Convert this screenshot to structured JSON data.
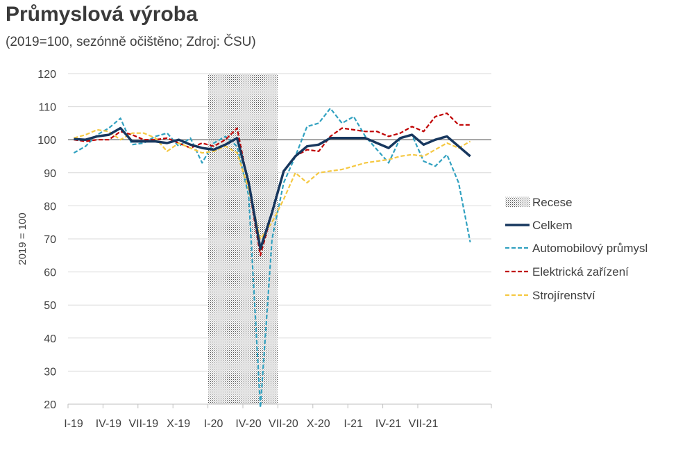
{
  "title": "Průmyslová výroba",
  "subtitle": "(2019=100, sezónně očištěno; Zdroj: ČSU)",
  "chart_data": {
    "type": "line",
    "title": "Průmyslová výroba",
    "subtitle": "(2019=100, sezónně očištěno; Zdroj: ČSU)",
    "xlabel": "",
    "ylabel": "2019 = 100",
    "ylim": [
      20,
      120
    ],
    "yticks": [
      20,
      30,
      40,
      50,
      60,
      70,
      80,
      90,
      100,
      110,
      120
    ],
    "x_tick_labels": [
      "I-19",
      "IV-19",
      "VII-19",
      "X-19",
      "I-20",
      "IV-20",
      "VII-20",
      "X-20",
      "I-21",
      "IV-21",
      "VII-21"
    ],
    "x": [
      "I-19",
      "II-19",
      "III-19",
      "IV-19",
      "V-19",
      "VI-19",
      "VII-19",
      "VIII-19",
      "IX-19",
      "X-19",
      "XI-19",
      "XII-19",
      "I-20",
      "II-20",
      "III-20",
      "IV-20",
      "V-20",
      "VI-20",
      "VII-20",
      "VIII-20",
      "IX-20",
      "X-20",
      "XI-20",
      "XII-20",
      "I-21",
      "II-21",
      "III-21",
      "IV-21",
      "V-21",
      "VI-21",
      "VII-21",
      "VIII-21",
      "IX-21",
      "X-21",
      "XI-21"
    ],
    "reference_line": 100,
    "recession_shading": {
      "label": "Recese",
      "from": "I-20",
      "to": "VI-20"
    },
    "series": [
      {
        "name": "Celkem",
        "color": "#17375e",
        "style": "solid",
        "values": [
          100.2,
          100.0,
          101.0,
          101.5,
          103.5,
          99.5,
          99.5,
          99.5,
          99.0,
          100.0,
          98.5,
          97.5,
          97.0,
          98.5,
          100.5,
          87.0,
          67.0,
          78.0,
          90.5,
          95.0,
          98.0,
          98.5,
          100.5,
          100.5,
          100.5,
          100.5,
          99.0,
          97.5,
          100.5,
          101.5,
          98.5,
          100.0,
          101.0,
          98.0,
          95.0
        ]
      },
      {
        "name": "Automobilový průmysl",
        "color": "#31a1c0",
        "style": "dashed",
        "values": [
          96.0,
          98.0,
          101.5,
          103.5,
          106.5,
          98.5,
          99.0,
          101.0,
          102.0,
          98.0,
          100.5,
          93.0,
          99.0,
          101.0,
          98.0,
          83.0,
          19.0,
          70.0,
          87.0,
          95.0,
          104.0,
          105.0,
          109.5,
          105.0,
          107.0,
          101.0,
          97.0,
          93.0,
          100.5,
          101.5,
          93.5,
          92.0,
          95.5,
          87.0,
          69.0
        ]
      },
      {
        "name": "Elektrická zařízení",
        "color": "#c00000",
        "style": "dashed",
        "values": [
          100.0,
          99.5,
          100.0,
          100.0,
          102.5,
          101.5,
          100.0,
          100.0,
          100.5,
          99.0,
          97.5,
          99.0,
          98.0,
          100.0,
          103.5,
          86.0,
          65.0,
          78.0,
          90.5,
          95.0,
          97.0,
          96.5,
          101.0,
          103.5,
          103.0,
          102.5,
          102.5,
          101.0,
          102.0,
          104.0,
          102.5,
          107.0,
          108.0,
          104.5,
          104.5
        ]
      },
      {
        "name": "Strojírenství",
        "color": "#f5c842",
        "style": "dashed",
        "values": [
          100.5,
          101.5,
          103.0,
          102.5,
          100.0,
          102.0,
          102.0,
          100.5,
          96.5,
          99.0,
          97.5,
          96.0,
          96.5,
          98.0,
          96.0,
          85.0,
          70.0,
          75.0,
          82.0,
          90.0,
          87.0,
          90.0,
          90.5,
          91.0,
          92.0,
          93.0,
          93.5,
          94.0,
          95.0,
          95.5,
          95.0,
          97.0,
          99.0,
          97.5,
          99.5
        ]
      }
    ],
    "legend": [
      "Recese",
      "Celkem",
      "Automobilový průmysl",
      "Elektrická zařízení",
      "Strojírenství"
    ],
    "legend_position": "right",
    "grid": true
  }
}
